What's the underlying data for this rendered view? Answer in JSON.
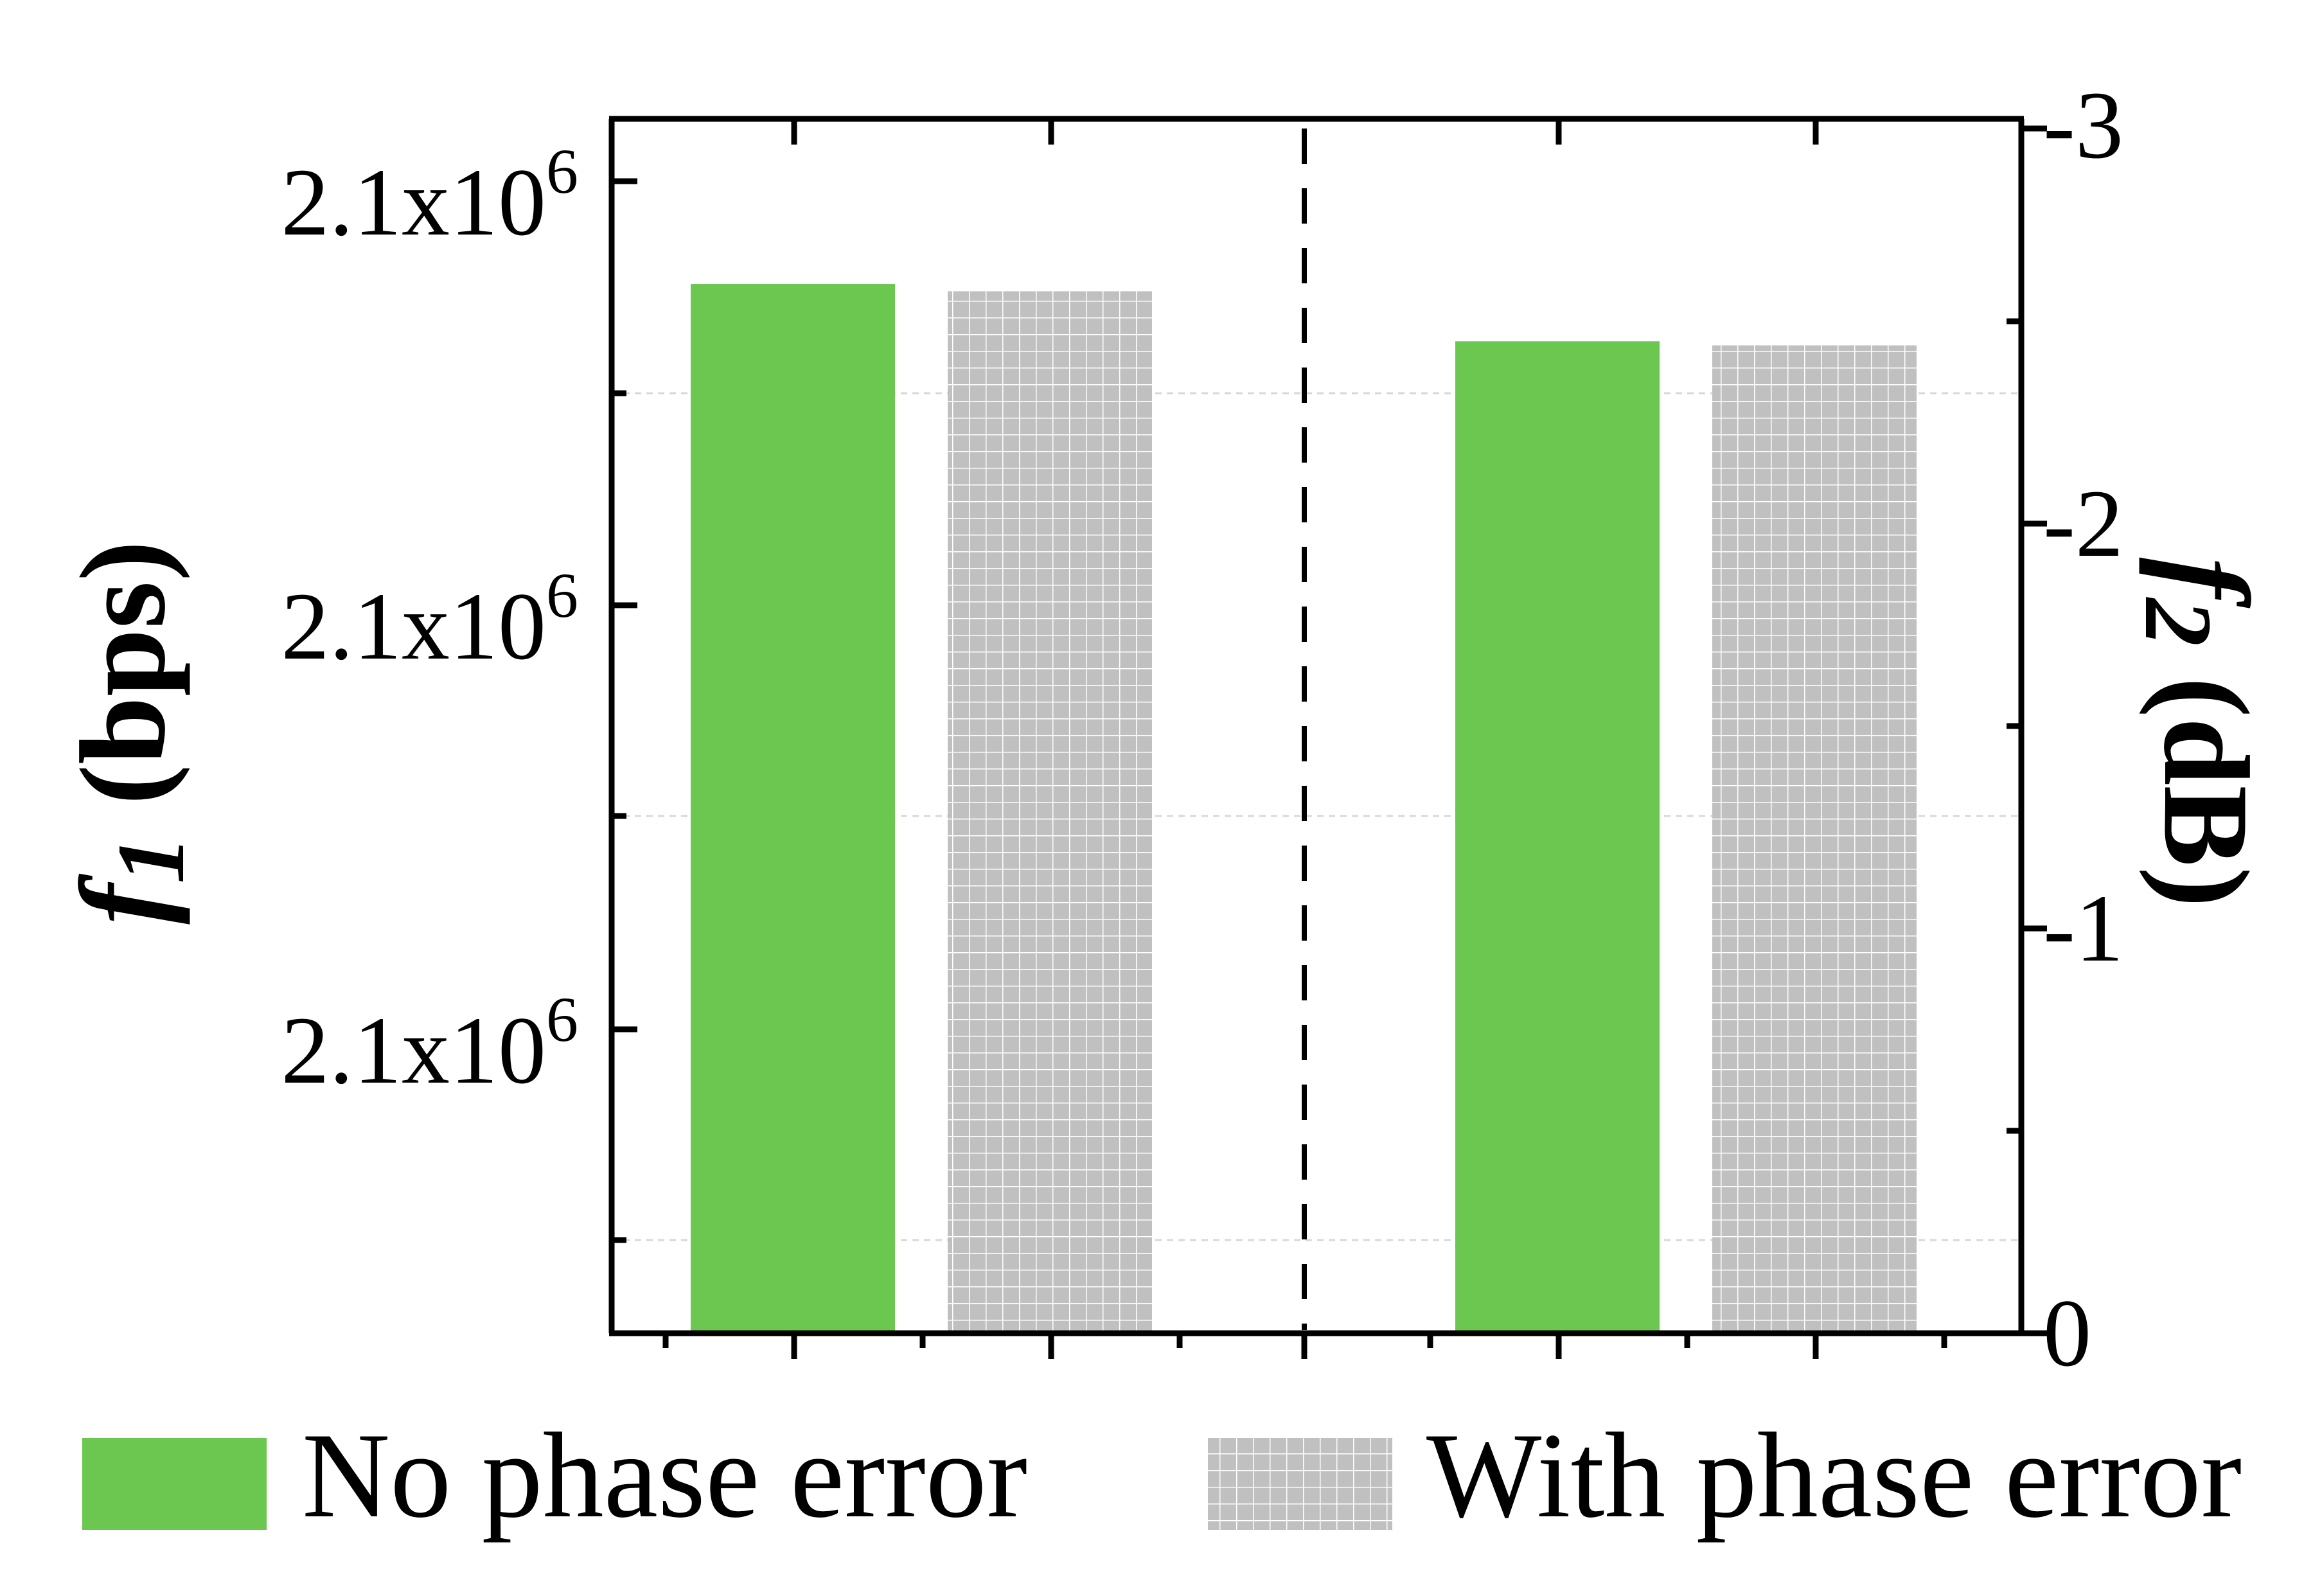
{
  "chart_data": {
    "type": "bar",
    "colors": {
      "no_phase_error": "#6cc751",
      "with_phase_error": "#c0c0c0",
      "axis": "#000000",
      "grid": "#d8d8d8"
    },
    "legend": {
      "placement": "bottom",
      "items": [
        {
          "label": "No phase error",
          "key": "no_phase_error"
        },
        {
          "label": "With phase error",
          "key": "with_phase_error"
        }
      ]
    },
    "left_axis": {
      "label_var": "f",
      "label_sub": "1",
      "label_unit": " (bps)",
      "tick_labels": [
        "2.1x10",
        "2.1x10",
        "2.1x10"
      ],
      "tick_exponent": "6"
    },
    "right_axis": {
      "label_var": "f",
      "label_sub": "2",
      "label_unit": " (dB)",
      "ylim": [
        0,
        -3
      ],
      "ticks": [
        0,
        -1,
        -2,
        -3
      ],
      "tick_labels": [
        "0",
        "-1",
        "-2",
        "-3"
      ]
    },
    "groups": [
      {
        "axis": "left",
        "no_phase_error": 0.864,
        "with_phase_error": 0.858
      },
      {
        "axis": "right",
        "no_phase_error": -2.47,
        "with_phase_error": -2.46
      }
    ],
    "grid": "horizontal dashed",
    "divider": "vertical dashed line between groups"
  }
}
